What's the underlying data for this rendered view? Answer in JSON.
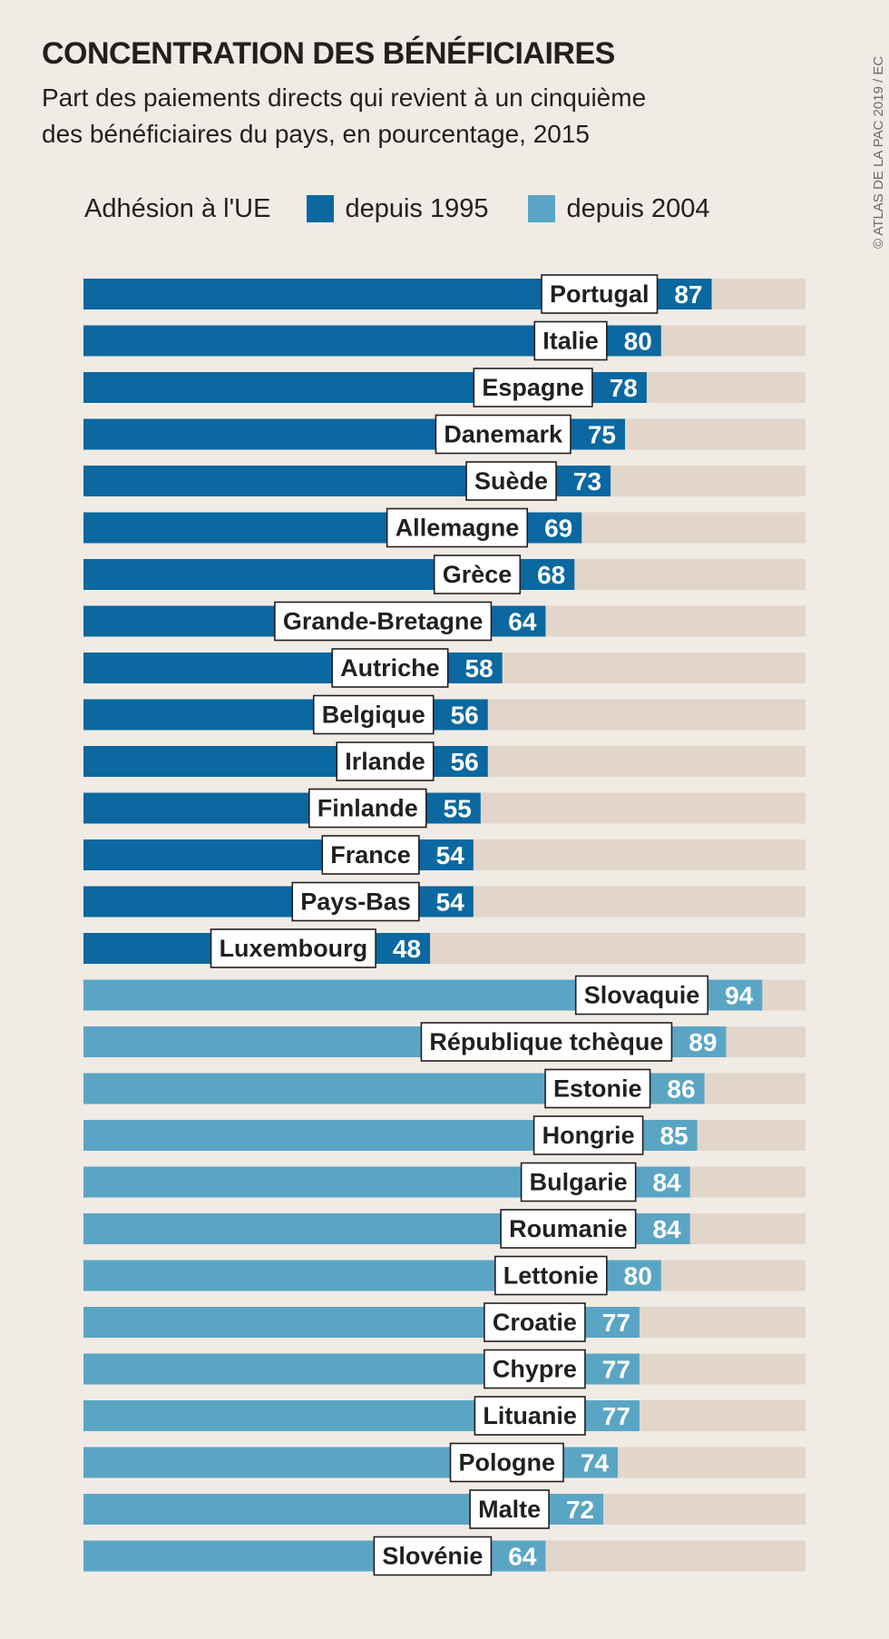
{
  "header": {
    "title": "CONCENTRATION DES BÉNÉFICIAIRES",
    "subtitle_line1": "Part des paiements directs qui revient à un cinquième",
    "subtitle_line2": "des bénéficiaires du pays, en pourcentage, 2015",
    "credit": "© ATLAS DE LA PAC 2019 / EC"
  },
  "legend": {
    "label": "Adhésion à l'UE",
    "items": [
      {
        "label": "depuis 1995",
        "color": "#0b68a0"
      },
      {
        "label": "depuis 2004",
        "color": "#5ba5c4"
      }
    ]
  },
  "colors": {
    "background": "#f0ebe5",
    "track": "#e2d6cb",
    "text": "#231f20"
  },
  "chart_data": {
    "type": "bar",
    "orientation": "horizontal",
    "xlim": [
      0,
      100
    ],
    "series": [
      {
        "name": "depuis 1995",
        "color": "#0b68a0",
        "categories": [
          "Portugal",
          "Italie",
          "Espagne",
          "Danemark",
          "Suède",
          "Allemagne",
          "Grèce",
          "Grande-Bretagne",
          "Autriche",
          "Belgique",
          "Irlande",
          "Finlande",
          "France",
          "Pays-Bas",
          "Luxembourg"
        ],
        "values": [
          87,
          80,
          78,
          75,
          73,
          69,
          68,
          64,
          58,
          56,
          56,
          55,
          54,
          54,
          48
        ]
      },
      {
        "name": "depuis 2004",
        "color": "#5ba5c4",
        "categories": [
          "Slovaquie",
          "République tchèque",
          "Estonie",
          "Hongrie",
          "Bulgarie",
          "Roumanie",
          "Lettonie",
          "Croatie",
          "Chypre",
          "Lituanie",
          "Pologne",
          "Malte",
          "Slovénie"
        ],
        "values": [
          94,
          89,
          86,
          85,
          84,
          84,
          80,
          77,
          77,
          77,
          74,
          72,
          64
        ]
      }
    ]
  }
}
